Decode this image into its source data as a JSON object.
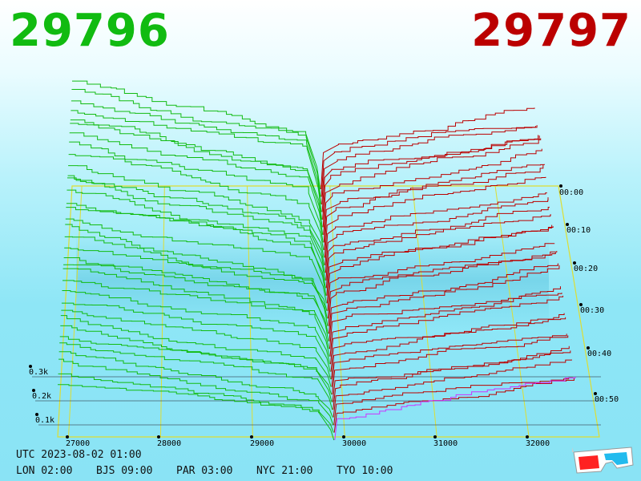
{
  "header": {
    "bid_price": "29796",
    "ask_price": "29797",
    "bid_color": "#11bb11",
    "ask_color": "#bb0000"
  },
  "footer": {
    "utc": "UTC 2023-08-02 01:00",
    "cities": [
      {
        "label": "LON 02:00"
      },
      {
        "label": "BJS 09:00"
      },
      {
        "label": "PAR 03:00"
      },
      {
        "label": "NYC 21:00"
      },
      {
        "label": "TYO 10:00"
      }
    ]
  },
  "chart_data": {
    "type": "area",
    "x_tick_labels": [
      "27000",
      "28000",
      "29000",
      "30000",
      "31000",
      "32000"
    ],
    "depth_tick_labels": [
      "0.1k",
      "0.2k",
      "0.3k"
    ],
    "time_tick_labels": [
      "00:00",
      "00:10",
      "00:20",
      "00:30",
      "00:40",
      "00:50"
    ],
    "mid_price": 29796.5,
    "series": [
      {
        "side": "bid",
        "color": "#11bb11"
      },
      {
        "side": "ask",
        "color": "#bb0000"
      }
    ],
    "latest_ask_color": "#cc33ff",
    "grid_color": "#dddd33"
  },
  "icon": {
    "name": "3d-glasses-icon"
  }
}
